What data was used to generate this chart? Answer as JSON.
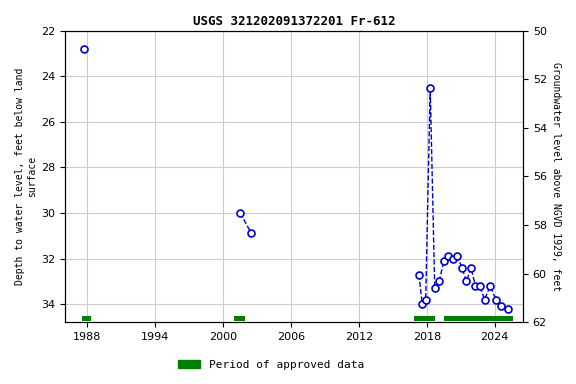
{
  "title": "USGS 321202091372201 Fr-612",
  "legend_label": "Period of approved data",
  "ylabel_left": "Depth to water level, feet below land\nsurface",
  "ylabel_right": "Groundwater level above NGVD 1929, feet",
  "ylim_left": [
    22,
    34.8
  ],
  "ylim_right": [
    62,
    50.0
  ],
  "xlim": [
    1986.0,
    2026.5
  ],
  "xticks": [
    1988,
    1994,
    2000,
    2006,
    2012,
    2018,
    2024
  ],
  "yticks_left": [
    22,
    24,
    26,
    28,
    30,
    32,
    34
  ],
  "yticks_right": [
    62,
    60,
    58,
    56,
    54,
    52,
    50
  ],
  "segments": [
    {
      "x": [
        1987.7
      ],
      "y": [
        22.8
      ]
    },
    {
      "x": [
        2001.5,
        2002.5
      ],
      "y": [
        30.0,
        30.9
      ]
    },
    {
      "x": [
        2017.3,
        2017.6,
        2017.9,
        2018.3,
        2018.7,
        2019.1,
        2019.5,
        2019.9,
        2020.3,
        2020.7,
        2021.1,
        2021.5,
        2021.9,
        2022.3,
        2022.7,
        2023.1,
        2023.6,
        2024.1,
        2024.6,
        2025.2
      ],
      "y": [
        32.7,
        34.0,
        33.8,
        24.5,
        33.3,
        33.0,
        32.1,
        31.9,
        32.0,
        31.9,
        32.4,
        33.0,
        32.4,
        33.2,
        33.2,
        33.8,
        33.2,
        33.8,
        34.1,
        34.2
      ]
    }
  ],
  "approved_bars": [
    {
      "x_start": 1987.5,
      "x_end": 1988.3
    },
    {
      "x_start": 2001.0,
      "x_end": 2001.9
    },
    {
      "x_start": 2016.9,
      "x_end": 2018.7
    },
    {
      "x_start": 2019.5,
      "x_end": 2025.6
    }
  ],
  "point_color": "#0000cc",
  "line_color": "#0000cc",
  "approved_color": "#008000",
  "bg_color": "#ffffff",
  "grid_color": "#cccccc",
  "font_family": "monospace",
  "title_fontsize": 9,
  "label_fontsize": 7,
  "tick_fontsize": 8
}
